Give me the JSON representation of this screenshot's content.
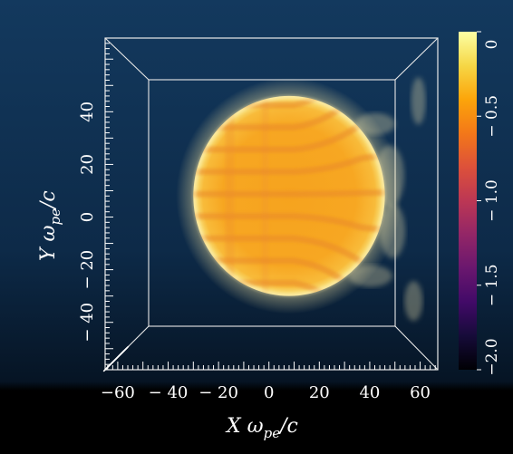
{
  "chart_data": {
    "type": "heatmap",
    "title": "",
    "xlabel": {
      "main": "X ω",
      "sub": "pe",
      "tail": "/c"
    },
    "ylabel": {
      "main": "Y ω",
      "sub": "pe",
      "tail": "/c"
    },
    "xlim": [
      -65,
      67
    ],
    "ylim": [
      -58,
      68
    ],
    "x_ticks": [
      {
        "value": -60,
        "label": "−60"
      },
      {
        "value": -40,
        "label": "− 40"
      },
      {
        "value": -20,
        "label": "− 20"
      },
      {
        "value": 0,
        "label": "0"
      },
      {
        "value": 20,
        "label": "20"
      },
      {
        "value": 40,
        "label": "40"
      },
      {
        "value": 60,
        "label": "60"
      }
    ],
    "y_ticks": [
      {
        "value": -40,
        "label": "− 40"
      },
      {
        "value": -20,
        "label": "− 20"
      },
      {
        "value": 0,
        "label": "0"
      },
      {
        "value": 20,
        "label": "20"
      },
      {
        "value": 40,
        "label": "40"
      }
    ],
    "colorbar": {
      "colormap": "inferno",
      "range": [
        -2.0,
        0
      ],
      "ticks": [
        {
          "value": 0,
          "label": "0"
        },
        {
          "value": -0.5,
          "label": "− 0.5"
        },
        {
          "value": -1.0,
          "label": "− 1.0"
        },
        {
          "value": -1.5,
          "label": "− 1.5"
        },
        {
          "value": -2.0,
          "label": "−2.0"
        }
      ]
    },
    "features": {
      "sphere_center": [
        8,
        8
      ],
      "sphere_radius": 38,
      "value_range_on_sphere": [
        -0.55,
        -0.35
      ],
      "stripe_count": 9,
      "view": "3D volume rendering viewed along z-axis"
    },
    "colors": {
      "bg_top": "#13395e",
      "bg_bottom": "#000000",
      "box": "#e8e8e8",
      "text": "#ffffff"
    }
  }
}
